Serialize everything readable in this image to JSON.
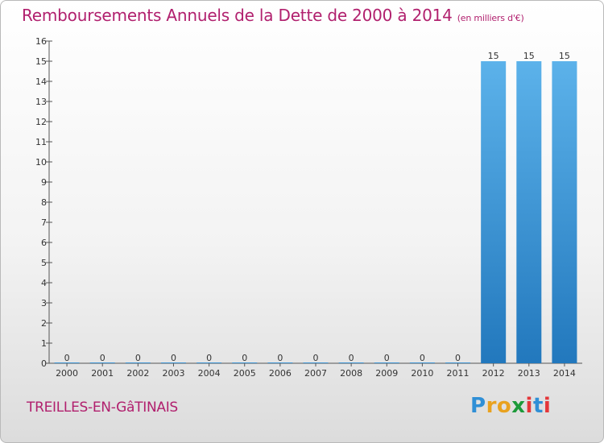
{
  "chart_data": {
    "type": "bar",
    "title": "Remboursements Annuels de la Dette de 2000 à 2014",
    "unit_note": "(en milliers d'€)",
    "categories": [
      "2000",
      "2001",
      "2002",
      "2003",
      "2004",
      "2005",
      "2006",
      "2007",
      "2008",
      "2009",
      "2010",
      "2011",
      "2012",
      "2013",
      "2014"
    ],
    "values": [
      0,
      0,
      0,
      0,
      0,
      0,
      0,
      0,
      0,
      0,
      0,
      0,
      15,
      15,
      15
    ],
    "data_labels": [
      "0",
      "0",
      "0",
      "0",
      "0",
      "0",
      "0",
      "0",
      "0",
      "0",
      "0",
      "0",
      "15",
      "15",
      "15"
    ],
    "ylim": [
      0,
      16
    ],
    "yticks": [
      "0",
      "1",
      "2",
      "3",
      "4",
      "5",
      "6",
      "7",
      "8",
      "9",
      "10",
      "11",
      "12",
      "13",
      "14",
      "15",
      "16"
    ],
    "xlabel": "",
    "ylabel": "",
    "grid": false,
    "bar_color": "#3d9ad9",
    "bar_color_light": "#5cb2ea",
    "bar_color_dark": "#2278bd",
    "title_color": "#b1206e"
  },
  "footer": {
    "commune": "TREILLES-EN-GâTINAIS",
    "logo": {
      "p": "P",
      "r": "r",
      "o": "o",
      "x": "x",
      "i1": "i",
      "t": "t",
      "i2": "i"
    }
  }
}
